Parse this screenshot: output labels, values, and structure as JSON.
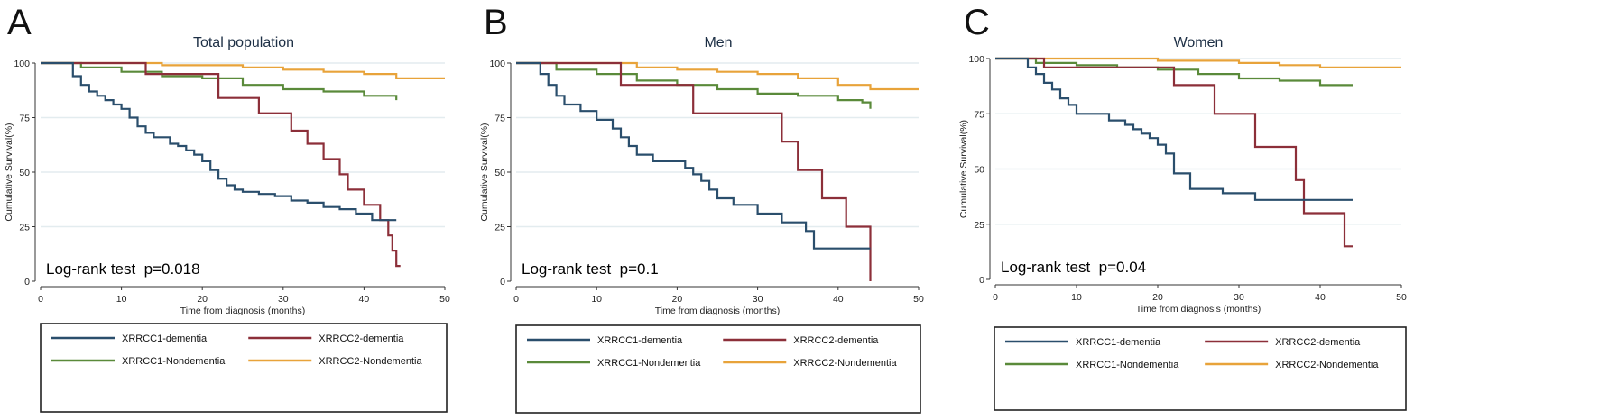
{
  "figure": {
    "colors": {
      "xrrcc1_dementia": "#2a4e6c",
      "xrrcc2_dementia": "#8c2f39",
      "xrrcc1_nondementia": "#5a8a3a",
      "xrrcc2_nondementia": "#e8a33a",
      "gridline": "#e3ecef",
      "axis": "#333333"
    }
  },
  "chart_data": [
    {
      "type": "line",
      "subtype": "kaplan-meier",
      "panel_letter": "A",
      "title": "Total population",
      "xlabel": "Time from diagnosis (months)",
      "ylabel": "Cumulative Survival(%)",
      "xlim": [
        0,
        50
      ],
      "ylim": [
        0,
        100
      ],
      "xticks": [
        "0",
        "10",
        "20",
        "30",
        "40",
        "50"
      ],
      "yticks": [
        "0",
        "25",
        "50",
        "75",
        "100"
      ],
      "grid": "horizontal",
      "annotation": "Log-rank test  p=0.018",
      "legend": [
        "XRRCC1-dementia",
        "XRRCC2-dementia",
        "XRRCC1-Nondementia",
        "XRRCC2-Nondementia"
      ],
      "legend_position": "bottom",
      "series": [
        {
          "name": "XRRCC1-dementia",
          "color_key": "xrrcc1_dementia",
          "x": [
            0,
            3,
            4,
            5,
            6,
            7,
            8,
            9,
            10,
            11,
            12,
            13,
            14,
            16,
            17,
            18,
            19,
            20,
            21,
            22,
            23,
            24,
            25,
            27,
            29,
            31,
            33,
            35,
            37,
            39,
            41,
            44
          ],
          "y": [
            100,
            100,
            94,
            90,
            87,
            85,
            83,
            81,
            79,
            75,
            71,
            68,
            66,
            63,
            62,
            60,
            58,
            55,
            51,
            47,
            44,
            42,
            41,
            40,
            39,
            37,
            36,
            34,
            33,
            31,
            28,
            28
          ]
        },
        {
          "name": "XRRCC2-dementia",
          "color_key": "xrrcc2_dementia",
          "x": [
            0,
            13,
            22,
            27,
            31,
            33,
            35,
            37,
            38,
            40,
            42,
            43,
            43.5,
            44,
            44.5
          ],
          "y": [
            100,
            95,
            84,
            77,
            69,
            63,
            56,
            49,
            42,
            35,
            28,
            21,
            14,
            7,
            7
          ]
        },
        {
          "name": "XRRCC1-Nondementia",
          "color_key": "xrrcc1_nondementia",
          "x": [
            0,
            5,
            10,
            15,
            20,
            25,
            30,
            35,
            40,
            44
          ],
          "y": [
            100,
            98,
            96,
            94,
            93,
            90,
            88,
            87,
            85,
            83
          ]
        },
        {
          "name": "XRRCC2-Nondementia",
          "color_key": "xrrcc2_nondementia",
          "x": [
            0,
            5,
            10,
            15,
            20,
            25,
            30,
            35,
            40,
            44,
            50
          ],
          "y": [
            100,
            100,
            100,
            99,
            99,
            98,
            97,
            96,
            95,
            93,
            93
          ]
        }
      ]
    },
    {
      "type": "line",
      "subtype": "kaplan-meier",
      "panel_letter": "B",
      "title": "Men",
      "xlabel": "Time from diagnosis (months)",
      "ylabel": "Cumulative Survival(%)",
      "xlim": [
        0,
        50
      ],
      "ylim": [
        0,
        100
      ],
      "xticks": [
        "0",
        "10",
        "20",
        "30",
        "40",
        "50"
      ],
      "yticks": [
        "0",
        "25",
        "50",
        "75",
        "100"
      ],
      "grid": "horizontal",
      "annotation": "Log-rank test  p=0.1",
      "legend": [
        "XRRCC1-dementia",
        "XRRCC2-dementia",
        "XRRCC1-Nondementia",
        "XRRCC2-Nondementia"
      ],
      "legend_position": "bottom",
      "series": [
        {
          "name": "XRRCC1-dementia",
          "color_key": "xrrcc1_dementia",
          "x": [
            0,
            2,
            3,
            4,
            5,
            6,
            8,
            10,
            12,
            13,
            14,
            15,
            16,
            17,
            21,
            22,
            23,
            24,
            25,
            27,
            30,
            33,
            36,
            37,
            44
          ],
          "y": [
            100,
            100,
            95,
            90,
            85,
            81,
            78,
            74,
            70,
            66,
            62,
            58,
            58,
            55,
            52,
            49,
            46,
            42,
            38,
            35,
            31,
            27,
            23,
            15,
            15
          ]
        },
        {
          "name": "XRRCC2-dementia",
          "color_key": "xrrcc2_dementia",
          "x": [
            0,
            13,
            22,
            33,
            35,
            38,
            41,
            43,
            44
          ],
          "y": [
            100,
            90,
            77,
            64,
            51,
            38,
            25,
            25,
            0
          ]
        },
        {
          "name": "XRRCC1-Nondementia",
          "color_key": "xrrcc1_nondementia",
          "x": [
            0,
            5,
            10,
            15,
            20,
            25,
            30,
            35,
            40,
            43,
            44
          ],
          "y": [
            100,
            97,
            95,
            92,
            90,
            88,
            86,
            85,
            83,
            82,
            79
          ]
        },
        {
          "name": "XRRCC2-Nondementia",
          "color_key": "xrrcc2_nondementia",
          "x": [
            0,
            10,
            15,
            20,
            25,
            30,
            35,
            40,
            44,
            50
          ],
          "y": [
            100,
            100,
            98,
            97,
            96,
            95,
            93,
            90,
            88,
            88
          ]
        }
      ]
    },
    {
      "type": "line",
      "subtype": "kaplan-meier",
      "panel_letter": "C",
      "title": "Women",
      "xlabel": "Time from diagnosis (months)",
      "ylabel": "Cumulative Survival(%)",
      "xlim": [
        0,
        50
      ],
      "ylim": [
        0,
        100
      ],
      "xticks": [
        "0",
        "10",
        "20",
        "30",
        "40",
        "50"
      ],
      "yticks": [
        "0",
        "25",
        "50",
        "75",
        "100"
      ],
      "grid": "horizontal",
      "annotation": "Log-rank test  p=0.04",
      "legend": [
        "XRRCC1-dementia",
        "XRRCC2-dementia",
        "XRRCC1-Nondementia",
        "XRRCC2-Nondementia"
      ],
      "legend_position": "bottom",
      "series": [
        {
          "name": "XRRCC1-dementia",
          "color_key": "xrrcc1_dementia",
          "x": [
            0,
            3,
            4,
            5,
            6,
            7,
            8,
            9,
            10,
            11,
            14,
            16,
            17,
            18,
            19,
            20,
            21,
            22,
            24,
            28,
            32,
            44
          ],
          "y": [
            100,
            100,
            96,
            93,
            89,
            86,
            82,
            79,
            75,
            75,
            72,
            70,
            68,
            66,
            64,
            61,
            57,
            48,
            41,
            39,
            36,
            36
          ]
        },
        {
          "name": "XRRCC2-dementia",
          "color_key": "xrrcc2_dementia",
          "x": [
            0,
            6,
            22,
            27,
            32,
            37,
            38,
            43,
            44
          ],
          "y": [
            100,
            96,
            88,
            75,
            60,
            45,
            30,
            15,
            15
          ]
        },
        {
          "name": "XRRCC1-Nondementia",
          "color_key": "xrrcc1_nondementia",
          "x": [
            0,
            5,
            10,
            15,
            20,
            25,
            30,
            35,
            40,
            44
          ],
          "y": [
            100,
            98,
            97,
            96,
            95,
            93,
            91,
            90,
            88,
            88
          ]
        },
        {
          "name": "XRRCC2-Nondementia",
          "color_key": "xrrcc2_nondementia",
          "x": [
            0,
            10,
            20,
            30,
            35,
            40,
            50
          ],
          "y": [
            100,
            100,
            99,
            98,
            97,
            96,
            96
          ]
        }
      ]
    }
  ]
}
